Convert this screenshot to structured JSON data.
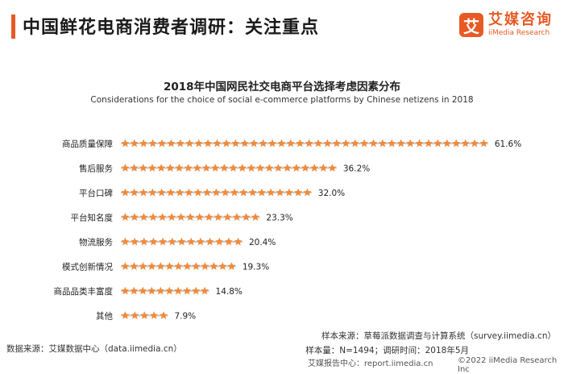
{
  "header": {
    "title": "中国鲜花电商消费者调研：关注重点",
    "logo_mark": "艾",
    "logo_cn": "艾媒咨询",
    "logo_en": "iiMedia Research",
    "accent_color": "#e85a24"
  },
  "chart_data": {
    "type": "bar",
    "style": "pictograph-stars",
    "orientation": "horizontal",
    "title": "2018年中国网民社交电商平台选择考虑因素分布",
    "subtitle": "Considerations for the choice of social e-commerce platforms by Chinese netizens in 2018",
    "categories": [
      "商品质量保障",
      "售后服务",
      "平台口碑",
      "平台知名度",
      "物流服务",
      "模式创新情况",
      "商品品类丰富度",
      "其他"
    ],
    "values": [
      61.6,
      36.2,
      32.0,
      23.3,
      20.4,
      19.3,
      14.8,
      7.9
    ],
    "value_labels": [
      "61.6%",
      "36.2%",
      "32.0%",
      "23.3%",
      "20.4%",
      "19.3%",
      "14.8%",
      "7.9%"
    ],
    "unit": "%",
    "star_color": "#f08a3c",
    "track_color": "#c9c9c9"
  },
  "notes": {
    "source_left": "数据来源：艾媒数据中心（data.iimedia.cn）",
    "sample_source": "样本来源：草莓派数据调查与计算系统（survey.iimedia.cn）",
    "sample_size": "样本量：N=1494；调研时间：2018年5月"
  },
  "footer": {
    "report_link": "艾媒报告中心：report.iimedia.cn",
    "copyright": "©2022  iiMedia Research  Inc"
  }
}
